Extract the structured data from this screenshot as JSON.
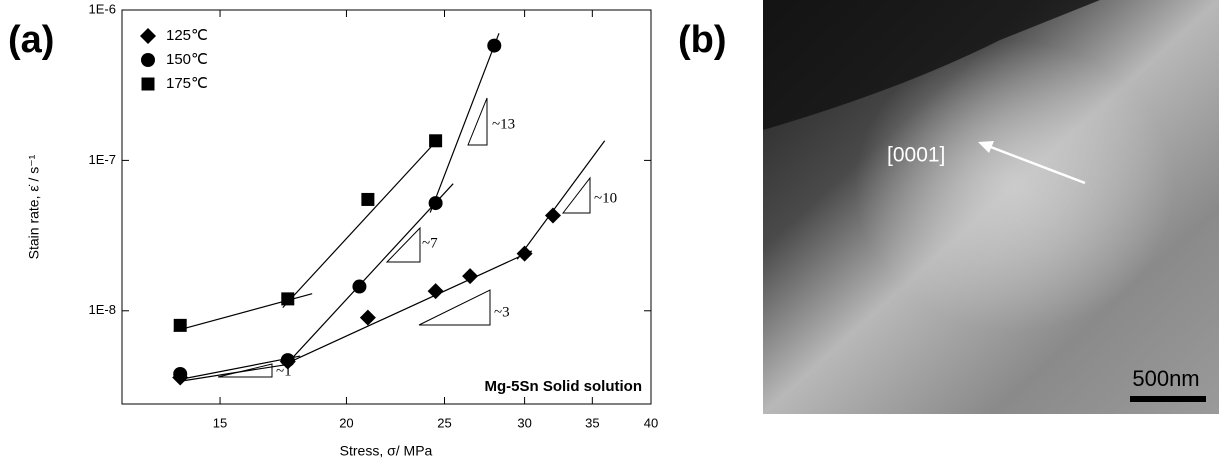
{
  "chart_data": {
    "type": "scatter",
    "panel_label": "(a)",
    "xlabel": "Stress, σ/ MPa",
    "ylabel": "Stain rate, ε̇ / s⁻¹",
    "xscale": "log",
    "yscale": "log",
    "xlim": [
      12,
      40
    ],
    "ylim": [
      2.4e-09,
      1e-06
    ],
    "xticks": [
      15,
      20,
      25,
      30,
      35,
      40
    ],
    "yticks": [
      {
        "value": 1e-08,
        "label": "1E-8"
      },
      {
        "value": 1e-07,
        "label": "1E-7"
      },
      {
        "value": 1e-06,
        "label": "1E-6"
      }
    ],
    "legend": "upper left",
    "series": [
      {
        "name": "125℃",
        "marker": "diamond",
        "color": "#000000",
        "x": [
          13.7,
          17.5,
          21,
          24.5,
          26.5,
          30,
          32
        ],
        "values": [
          3.6e-09,
          4.6e-09,
          9e-09,
          1.35e-08,
          1.7e-08,
          2.4e-08,
          4.3e-08
        ]
      },
      {
        "name": "150℃",
        "marker": "circle",
        "color": "#000000",
        "x": [
          13.7,
          17.5,
          20.6,
          24.5,
          28
        ],
        "values": [
          3.8e-09,
          4.7e-09,
          1.45e-08,
          5.2e-08,
          5.8e-07
        ]
      },
      {
        "name": "175℃",
        "marker": "square",
        "color": "#000000",
        "x": [
          13.7,
          17.5,
          21,
          24.5
        ],
        "values": [
          8e-09,
          1.2e-08,
          5.5e-08,
          1.35e-07
        ]
      }
    ],
    "fit_lines": [
      {
        "x": [
          13.5,
          18.5
        ],
        "values": [
          7.3e-09,
          1.3e-08
        ]
      },
      {
        "x": [
          17.3,
          24.8
        ],
        "values": [
          1.05e-08,
          1.45e-07
        ]
      },
      {
        "x": [
          13.7,
          18
        ],
        "values": [
          3.5e-09,
          5e-09
        ]
      },
      {
        "x": [
          17.5,
          25.5
        ],
        "values": [
          4.5e-09,
          7e-08
        ]
      },
      {
        "x": [
          24.2,
          28.3
        ],
        "values": [
          4.5e-08,
          7e-07
        ]
      },
      {
        "x": [
          13.7,
          17.5
        ],
        "values": [
          3.4e-09,
          4.4e-09
        ]
      },
      {
        "x": [
          17.5,
          30.5
        ],
        "values": [
          4.5e-09,
          2.5e-08
        ]
      },
      {
        "x": [
          29.5,
          36
        ],
        "values": [
          2.2e-08,
          1.35e-07
        ]
      }
    ],
    "slope_labels": [
      "~13",
      "~10",
      "~7",
      "~3",
      "~1"
    ],
    "annotation": "Mg-5Sn Solid solution"
  },
  "image_panel": {
    "label": "(b)",
    "direction": "[0001]",
    "scale_bar": "500nm"
  }
}
